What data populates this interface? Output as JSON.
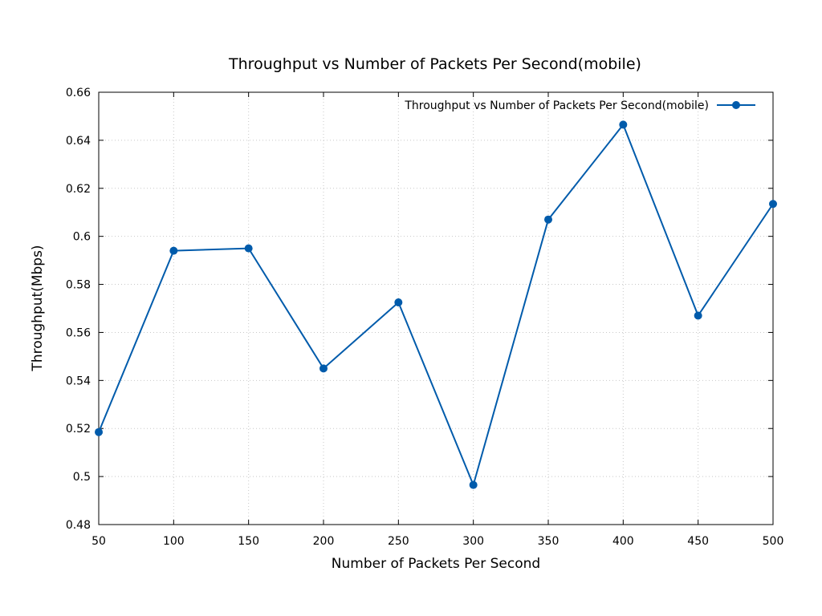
{
  "chart_data": {
    "type": "line",
    "title": "Throughput vs Number of Packets Per Second(mobile)",
    "xlabel": "Number of Packets Per Second",
    "ylabel": "Throughput(Mbps)",
    "xlim": [
      50,
      500
    ],
    "ylim": [
      0.48,
      0.66
    ],
    "x_ticks": [
      "50",
      "100",
      "150",
      "200",
      "250",
      "300",
      "350",
      "400",
      "450",
      "500"
    ],
    "y_ticks": [
      "0.48",
      "0.5",
      "0.52",
      "0.54",
      "0.56",
      "0.58",
      "0.6",
      "0.62",
      "0.64",
      "0.66"
    ],
    "grid": true,
    "legend_position": "top-right",
    "series": [
      {
        "name": "Throughput vs Number of Packets Per Second(mobile)",
        "color": "#005bab",
        "marker": "circle",
        "x": [
          50,
          100,
          150,
          200,
          250,
          300,
          350,
          400,
          450,
          500
        ],
        "values": [
          0.5185,
          0.594,
          0.595,
          0.545,
          0.5725,
          0.4965,
          0.607,
          0.6465,
          0.567,
          0.6135
        ]
      }
    ]
  }
}
